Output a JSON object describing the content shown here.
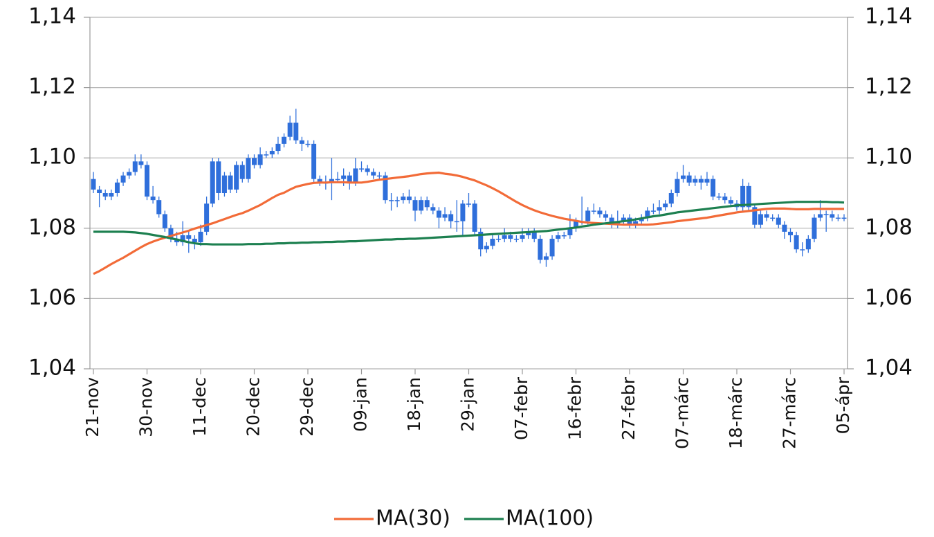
{
  "chart_data": {
    "type": "candlestick",
    "categories": [
      "21-nov",
      null,
      null,
      null,
      null,
      null,
      null,
      null,
      null,
      "30-nov",
      null,
      null,
      null,
      null,
      null,
      null,
      null,
      null,
      "11-dec",
      null,
      null,
      null,
      null,
      null,
      null,
      null,
      null,
      "20-dec",
      null,
      null,
      null,
      null,
      null,
      null,
      null,
      null,
      "29-dec",
      null,
      null,
      null,
      null,
      null,
      null,
      null,
      null,
      "09-jan",
      null,
      null,
      null,
      null,
      null,
      null,
      null,
      null,
      "18-jan",
      null,
      null,
      null,
      null,
      null,
      null,
      null,
      null,
      "29-jan",
      null,
      null,
      null,
      null,
      null,
      null,
      null,
      null,
      "07-febr",
      null,
      null,
      null,
      null,
      null,
      null,
      null,
      null,
      "16-febr",
      null,
      null,
      null,
      null,
      null,
      null,
      null,
      null,
      "27-febr",
      null,
      null,
      null,
      null,
      null,
      null,
      null,
      null,
      "07-márc",
      null,
      null,
      null,
      null,
      null,
      null,
      null,
      null,
      "18-márc",
      null,
      null,
      null,
      null,
      null,
      null,
      null,
      null,
      "27-márc",
      null,
      null,
      null,
      null,
      null,
      null,
      null,
      null,
      "05-ápr"
    ],
    "candles": {
      "color": "#2f6fdb",
      "open": [
        1.094,
        1.091,
        1.09,
        1.089,
        1.09,
        1.093,
        1.095,
        1.096,
        1.099,
        1.098,
        1.089,
        1.088,
        1.084,
        1.08,
        1.077,
        1.076,
        1.078,
        1.077,
        1.076,
        1.079,
        1.087,
        1.099,
        1.09,
        1.095,
        1.091,
        1.098,
        1.094,
        1.1,
        1.098,
        1.101,
        1.101,
        1.102,
        1.104,
        1.106,
        1.11,
        1.105,
        1.104,
        1.104,
        1.094,
        1.093,
        1.093,
        1.094,
        1.094,
        1.095,
        1.093,
        1.097,
        1.097,
        1.096,
        1.095,
        1.095,
        1.088,
        1.088,
        1.088,
        1.089,
        1.088,
        1.085,
        1.088,
        1.086,
        1.085,
        1.083,
        1.084,
        1.082,
        1.082,
        1.087,
        1.087,
        1.079,
        1.074,
        1.075,
        1.077,
        1.077,
        1.078,
        1.077,
        1.077,
        1.078,
        1.079,
        1.077,
        1.071,
        1.072,
        1.077,
        1.078,
        1.078,
        1.08,
        1.082,
        1.082,
        1.085,
        1.085,
        1.084,
        1.083,
        1.081,
        1.082,
        1.083,
        1.081,
        1.082,
        1.083,
        1.085,
        1.085,
        1.086,
        1.087,
        1.09,
        1.094,
        1.095,
        1.093,
        1.094,
        1.093,
        1.094,
        1.089,
        1.089,
        1.088,
        1.087,
        1.086,
        1.092,
        1.086,
        1.081,
        1.084,
        1.083,
        1.083,
        1.081,
        1.079,
        1.078,
        1.074,
        1.074,
        1.077,
        1.083,
        1.084,
        1.084,
        1.083,
        1.083
      ],
      "high": [
        1.096,
        1.092,
        1.091,
        1.091,
        1.094,
        1.096,
        1.097,
        1.101,
        1.101,
        1.099,
        1.092,
        1.089,
        1.085,
        1.081,
        1.079,
        1.082,
        1.079,
        1.078,
        1.081,
        1.089,
        1.1,
        1.1,
        1.096,
        1.096,
        1.099,
        1.099,
        1.101,
        1.101,
        1.103,
        1.102,
        1.103,
        1.106,
        1.107,
        1.112,
        1.114,
        1.106,
        1.105,
        1.105,
        1.095,
        1.095,
        1.1,
        1.096,
        1.097,
        1.096,
        1.1,
        1.099,
        1.098,
        1.097,
        1.096,
        1.096,
        1.09,
        1.089,
        1.09,
        1.091,
        1.089,
        1.089,
        1.089,
        1.087,
        1.086,
        1.086,
        1.085,
        1.088,
        1.088,
        1.09,
        1.088,
        1.08,
        1.076,
        1.078,
        1.078,
        1.08,
        1.079,
        1.078,
        1.08,
        1.08,
        1.08,
        1.078,
        1.073,
        1.078,
        1.079,
        1.079,
        1.084,
        1.083,
        1.089,
        1.086,
        1.087,
        1.086,
        1.085,
        1.084,
        1.085,
        1.084,
        1.084,
        1.083,
        1.084,
        1.086,
        1.087,
        1.088,
        1.088,
        1.091,
        1.096,
        1.098,
        1.096,
        1.095,
        1.095,
        1.096,
        1.095,
        1.09,
        1.09,
        1.089,
        1.088,
        1.094,
        1.093,
        1.087,
        1.085,
        1.085,
        1.084,
        1.084,
        1.082,
        1.08,
        1.079,
        1.076,
        1.078,
        1.084,
        1.088,
        1.085,
        1.085,
        1.084,
        1.084
      ],
      "low": [
        1.09,
        1.086,
        1.088,
        1.088,
        1.089,
        1.092,
        1.094,
        1.095,
        1.097,
        1.088,
        1.087,
        1.083,
        1.079,
        1.076,
        1.075,
        1.075,
        1.073,
        1.074,
        1.075,
        1.078,
        1.086,
        1.088,
        1.089,
        1.09,
        1.09,
        1.093,
        1.093,
        1.097,
        1.097,
        1.1,
        1.1,
        1.101,
        1.103,
        1.105,
        1.104,
        1.102,
        1.103,
        1.093,
        1.092,
        1.091,
        1.088,
        1.093,
        1.092,
        1.091,
        1.092,
        1.096,
        1.095,
        1.094,
        1.094,
        1.087,
        1.085,
        1.086,
        1.087,
        1.087,
        1.082,
        1.084,
        1.085,
        1.084,
        1.08,
        1.082,
        1.08,
        1.079,
        1.078,
        1.086,
        1.078,
        1.072,
        1.073,
        1.074,
        1.076,
        1.076,
        1.076,
        1.076,
        1.076,
        1.077,
        1.076,
        1.07,
        1.069,
        1.071,
        1.076,
        1.077,
        1.077,
        1.079,
        1.081,
        1.081,
        1.084,
        1.083,
        1.082,
        1.08,
        1.08,
        1.081,
        1.08,
        1.08,
        1.081,
        1.082,
        1.084,
        1.084,
        1.085,
        1.086,
        1.089,
        1.093,
        1.092,
        1.092,
        1.091,
        1.092,
        1.088,
        1.088,
        1.087,
        1.086,
        1.085,
        1.085,
        1.085,
        1.08,
        1.08,
        1.082,
        1.082,
        1.08,
        1.077,
        1.076,
        1.073,
        1.072,
        1.073,
        1.076,
        1.082,
        1.079,
        1.082,
        1.082,
        1.082
      ],
      "close": [
        1.091,
        1.09,
        1.089,
        1.09,
        1.093,
        1.095,
        1.096,
        1.099,
        1.098,
        1.089,
        1.088,
        1.084,
        1.08,
        1.077,
        1.076,
        1.078,
        1.077,
        1.076,
        1.079,
        1.087,
        1.099,
        1.09,
        1.095,
        1.091,
        1.098,
        1.094,
        1.1,
        1.098,
        1.101,
        1.101,
        1.102,
        1.104,
        1.106,
        1.11,
        1.105,
        1.104,
        1.104,
        1.094,
        1.093,
        1.093,
        1.094,
        1.094,
        1.095,
        1.093,
        1.097,
        1.097,
        1.096,
        1.095,
        1.095,
        1.088,
        1.088,
        1.088,
        1.089,
        1.088,
        1.085,
        1.088,
        1.086,
        1.085,
        1.083,
        1.084,
        1.082,
        1.082,
        1.087,
        1.087,
        1.079,
        1.074,
        1.075,
        1.077,
        1.077,
        1.078,
        1.077,
        1.077,
        1.078,
        1.079,
        1.077,
        1.071,
        1.072,
        1.077,
        1.078,
        1.078,
        1.08,
        1.082,
        1.082,
        1.085,
        1.085,
        1.084,
        1.083,
        1.081,
        1.082,
        1.083,
        1.081,
        1.082,
        1.083,
        1.085,
        1.085,
        1.086,
        1.087,
        1.09,
        1.094,
        1.095,
        1.093,
        1.094,
        1.093,
        1.094,
        1.089,
        1.089,
        1.088,
        1.087,
        1.086,
        1.092,
        1.086,
        1.081,
        1.084,
        1.083,
        1.083,
        1.081,
        1.079,
        1.078,
        1.074,
        1.074,
        1.077,
        1.083,
        1.084,
        1.084,
        1.083,
        1.083,
        1.083
      ]
    },
    "series": [
      {
        "name": "MA(30)",
        "color": "#f26b38",
        "values": [
          1.067,
          1.0678,
          1.0688,
          1.0698,
          1.0707,
          1.0716,
          1.0726,
          1.0736,
          1.0746,
          1.0755,
          1.0762,
          1.0768,
          1.0773,
          1.0778,
          1.0783,
          1.0788,
          1.0793,
          1.0799,
          1.0804,
          1.0809,
          1.0814,
          1.082,
          1.0826,
          1.0832,
          1.0838,
          1.0843,
          1.085,
          1.0858,
          1.0866,
          1.0876,
          1.0886,
          1.0895,
          1.0901,
          1.091,
          1.0918,
          1.0922,
          1.0926,
          1.0929,
          1.093,
          1.093,
          1.0931,
          1.0931,
          1.0931,
          1.093,
          1.093,
          1.093,
          1.0932,
          1.0935,
          1.0938,
          1.094,
          1.0942,
          1.0944,
          1.0946,
          1.0948,
          1.0951,
          1.0954,
          1.0956,
          1.0957,
          1.0958,
          1.0955,
          1.0953,
          1.095,
          1.0946,
          1.0941,
          1.0936,
          1.0929,
          1.0922,
          1.0914,
          1.0905,
          1.0895,
          1.0885,
          1.0875,
          1.0866,
          1.0858,
          1.0851,
          1.0845,
          1.084,
          1.0835,
          1.0831,
          1.0827,
          1.0824,
          1.0821,
          1.0818,
          1.0816,
          1.0815,
          1.0814,
          1.0813,
          1.0812,
          1.0811,
          1.081,
          1.081,
          1.081,
          1.081,
          1.081,
          1.0811,
          1.0813,
          1.0815,
          1.0817,
          1.082,
          1.0822,
          1.0824,
          1.0826,
          1.0828,
          1.083,
          1.0833,
          1.0836,
          1.0839,
          1.0842,
          1.0845,
          1.0847,
          1.0849,
          1.0851,
          1.0853,
          1.0855,
          1.0856,
          1.0856,
          1.0856,
          1.0855,
          1.0854,
          1.0854,
          1.0854,
          1.0855,
          1.0855,
          1.0855,
          1.0855,
          1.0855,
          1.0855
        ]
      },
      {
        "name": "MA(100)",
        "color": "#1d8050",
        "values": [
          1.079,
          1.079,
          1.079,
          1.079,
          1.079,
          1.079,
          1.0789,
          1.0788,
          1.0786,
          1.0784,
          1.0781,
          1.0778,
          1.0775,
          1.0771,
          1.0768,
          1.0764,
          1.076,
          1.0757,
          1.0755,
          1.0755,
          1.0754,
          1.0754,
          1.0754,
          1.0754,
          1.0754,
          1.0754,
          1.0755,
          1.0755,
          1.0755,
          1.0756,
          1.0756,
          1.0757,
          1.0757,
          1.0758,
          1.0758,
          1.0759,
          1.0759,
          1.076,
          1.076,
          1.0761,
          1.0761,
          1.0762,
          1.0762,
          1.0763,
          1.0763,
          1.0764,
          1.0765,
          1.0766,
          1.0767,
          1.0768,
          1.0768,
          1.0769,
          1.0769,
          1.077,
          1.077,
          1.0771,
          1.0772,
          1.0773,
          1.0774,
          1.0775,
          1.0776,
          1.0777,
          1.0778,
          1.0779,
          1.078,
          1.0781,
          1.0782,
          1.0783,
          1.0784,
          1.0785,
          1.0786,
          1.0787,
          1.0788,
          1.0789,
          1.079,
          1.0791,
          1.0792,
          1.0794,
          1.0796,
          1.0798,
          1.08,
          1.0802,
          1.0805,
          1.0807,
          1.081,
          1.0812,
          1.0814,
          1.0816,
          1.0818,
          1.082,
          1.0822,
          1.0825,
          1.0828,
          1.0831,
          1.0834,
          1.0836,
          1.0839,
          1.0842,
          1.0845,
          1.0847,
          1.0849,
          1.0851,
          1.0853,
          1.0855,
          1.0857,
          1.0859,
          1.0861,
          1.0863,
          1.0865,
          1.0866,
          1.0867,
          1.0868,
          1.0869,
          1.087,
          1.0871,
          1.0872,
          1.0873,
          1.0874,
          1.0875,
          1.0875,
          1.0875,
          1.0875,
          1.0875,
          1.0875,
          1.0874,
          1.0874,
          1.0873
        ]
      }
    ],
    "ylim": [
      1.04,
      1.14
    ],
    "yticks": [
      {
        "value": 1.04,
        "label": "1,04"
      },
      {
        "value": 1.06,
        "label": "1,06"
      },
      {
        "value": 1.08,
        "label": "1,08"
      },
      {
        "value": 1.1,
        "label": "1,10"
      },
      {
        "value": 1.12,
        "label": "1,12"
      },
      {
        "value": 1.14,
        "label": "1,14"
      }
    ],
    "y2lim": [
      1.04,
      1.14
    ],
    "y2ticks": [
      {
        "value": 1.04,
        "label": "1,04"
      },
      {
        "value": 1.06,
        "label": "1,06"
      },
      {
        "value": 1.08,
        "label": "1,08"
      },
      {
        "value": 1.1,
        "label": "1,10"
      },
      {
        "value": 1.12,
        "label": "1,12"
      },
      {
        "value": 1.14,
        "label": "1,14"
      }
    ],
    "grid": true,
    "legend": "bottom"
  }
}
